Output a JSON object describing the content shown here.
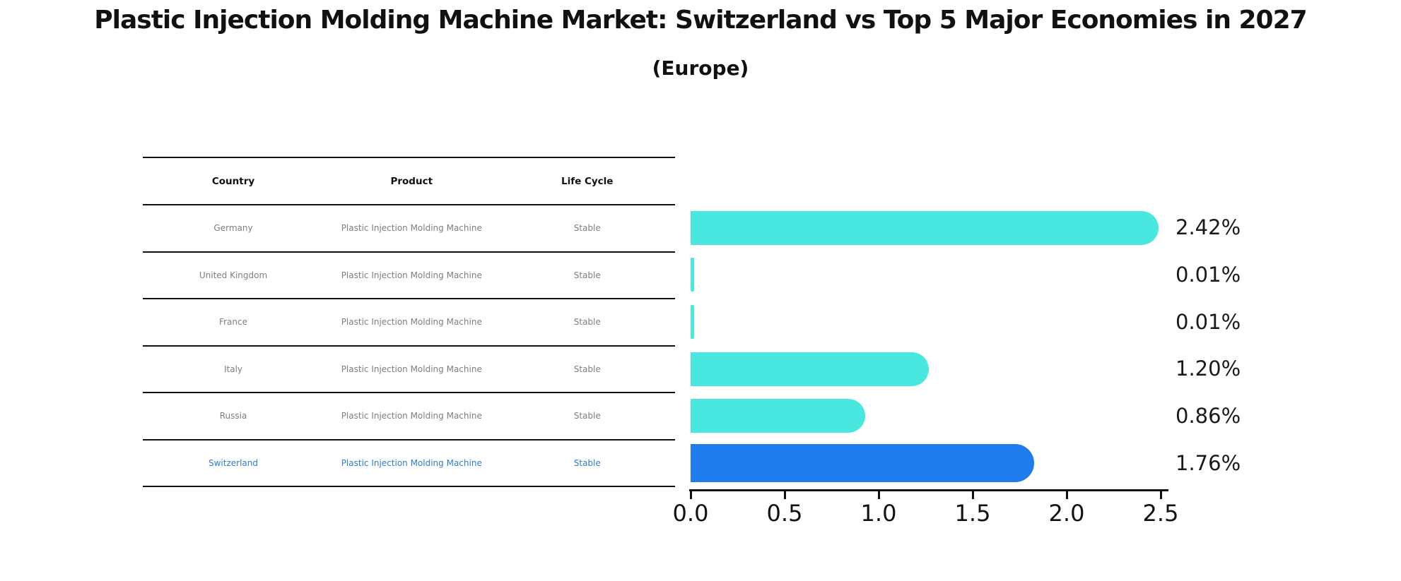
{
  "title": "Plastic Injection Molding Machine Market: Switzerland vs Top 5 Major Economies in 2027",
  "subtitle": "(Europe)",
  "table": {
    "headers": [
      "Country",
      "Product",
      "Life Cycle"
    ],
    "rows": [
      {
        "country": "Germany",
        "product": "Plastic Injection Molding Machine",
        "life_cycle": "Stable",
        "highlighted": false
      },
      {
        "country": "United Kingdom",
        "product": "Plastic Injection Molding Machine",
        "life_cycle": "Stable",
        "highlighted": false
      },
      {
        "country": "France",
        "product": "Plastic Injection Molding Machine",
        "life_cycle": "Stable",
        "highlighted": false
      },
      {
        "country": "Italy",
        "product": "Plastic Injection Molding Machine",
        "life_cycle": "Stable",
        "highlighted": false
      },
      {
        "country": "Russia",
        "product": "Plastic Injection Molding Machine",
        "life_cycle": "Stable",
        "highlighted": false
      },
      {
        "country": "Switzerland",
        "product": "Plastic Injection Molding Machine",
        "life_cycle": "Stable",
        "highlighted": true
      }
    ]
  },
  "chart_data": {
    "type": "bar",
    "orientation": "horizontal",
    "title": "Plastic Injection Molding Machine Market: Switzerland vs Top 5 Major Economies in 2027 (Europe)",
    "categories": [
      "Germany",
      "United Kingdom",
      "France",
      "Italy",
      "Russia",
      "Switzerland"
    ],
    "values": [
      2.42,
      0.01,
      0.01,
      1.2,
      0.86,
      1.76
    ],
    "value_labels": [
      "2.42%",
      "0.01%",
      "0.01%",
      "1.20%",
      "0.86%",
      "1.76%"
    ],
    "xlim": [
      0,
      2.5
    ],
    "xticks": [
      0.0,
      0.5,
      1.0,
      1.5,
      2.0,
      2.5
    ],
    "xtick_labels": [
      "0.0",
      "0.5",
      "1.0",
      "1.5",
      "2.0",
      "2.5"
    ],
    "highlight_index": 5,
    "grid": false,
    "legend": false,
    "colors": {
      "bar": "#48e7df",
      "highlight_bar": "#1e7cec",
      "highlight_text": "#2e7ec9",
      "row_text": "#7e7e7e",
      "axis": "#111111"
    }
  }
}
